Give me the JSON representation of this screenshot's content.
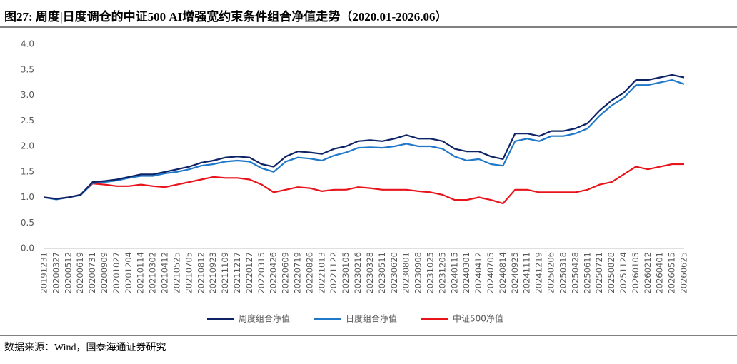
{
  "chart_data": {
    "type": "line",
    "title": "图27:  周度|日度调仓的中证500 AI增强宽约束条件组合净值走势（2020.01-2026.06）",
    "source": "数据来源：Wind，国泰海通证券研究",
    "categories": [
      "20191231",
      "20200327",
      "20200512",
      "20200619",
      "20200731",
      "20200909",
      "20201027",
      "20201204",
      "20210114",
      "20210302",
      "20210412",
      "20210525",
      "20210705",
      "20210812",
      "20210923",
      "20211109",
      "20211217",
      "20220127",
      "20220315",
      "20220426",
      "20220609",
      "20220719",
      "20220826",
      "20221013",
      "20221122",
      "20230105",
      "20230216",
      "20230328",
      "20230511",
      "20230620",
      "20230801",
      "20230908",
      "20231025",
      "20231205",
      "20240115",
      "20240301",
      "20240412",
      "20240705",
      "20240814",
      "20240925",
      "20241111",
      "20241219",
      "20250206",
      "20250318",
      "20250428",
      "20250611",
      "20250721",
      "20250828",
      "20251124",
      "20260105",
      "20260212",
      "20260401",
      "20260515",
      "20260625"
    ],
    "series": [
      {
        "name": "周度组合净值",
        "color": "#0d2366",
        "values": [
          1.0,
          0.97,
          1.0,
          1.05,
          1.3,
          1.32,
          1.35,
          1.4,
          1.45,
          1.45,
          1.5,
          1.55,
          1.6,
          1.68,
          1.72,
          1.78,
          1.8,
          1.78,
          1.65,
          1.6,
          1.8,
          1.9,
          1.88,
          1.85,
          1.95,
          2.0,
          2.1,
          2.12,
          2.1,
          2.15,
          2.22,
          2.15,
          2.15,
          2.1,
          1.95,
          1.9,
          1.9,
          1.8,
          1.75,
          2.25,
          2.25,
          2.2,
          2.3,
          2.3,
          2.35,
          2.45,
          2.7,
          2.9,
          3.05,
          3.3,
          3.3,
          3.35,
          3.4,
          3.35
        ]
      },
      {
        "name": "日度组合净值",
        "color": "#1f78c8",
        "values": [
          1.0,
          0.96,
          1.0,
          1.04,
          1.28,
          1.3,
          1.33,
          1.38,
          1.42,
          1.42,
          1.47,
          1.5,
          1.55,
          1.62,
          1.65,
          1.7,
          1.72,
          1.7,
          1.57,
          1.5,
          1.7,
          1.78,
          1.76,
          1.72,
          1.82,
          1.88,
          1.97,
          1.98,
          1.97,
          2.0,
          2.05,
          2.0,
          2.0,
          1.95,
          1.8,
          1.72,
          1.75,
          1.65,
          1.62,
          2.1,
          2.15,
          2.1,
          2.2,
          2.2,
          2.25,
          2.35,
          2.6,
          2.8,
          2.95,
          3.2,
          3.2,
          3.25,
          3.3,
          3.22
        ]
      },
      {
        "name": "中证500净值",
        "color": "#e8141b",
        "values": [
          1.0,
          0.97,
          1.0,
          1.05,
          1.27,
          1.25,
          1.22,
          1.22,
          1.25,
          1.22,
          1.2,
          1.25,
          1.3,
          1.35,
          1.4,
          1.38,
          1.38,
          1.35,
          1.25,
          1.1,
          1.15,
          1.2,
          1.18,
          1.12,
          1.15,
          1.15,
          1.2,
          1.18,
          1.15,
          1.15,
          1.15,
          1.12,
          1.1,
          1.05,
          0.95,
          0.95,
          1.0,
          0.95,
          0.88,
          1.15,
          1.15,
          1.1,
          1.1,
          1.1,
          1.1,
          1.15,
          1.25,
          1.3,
          1.45,
          1.6,
          1.55,
          1.6,
          1.65,
          1.65
        ]
      }
    ],
    "ylim": [
      0,
      4
    ],
    "yticks": [
      {
        "value": 0,
        "label": "0.0"
      },
      0.5,
      {
        "value": 1,
        "label": "1.0"
      },
      1.5,
      {
        "value": 2,
        "label": "2.0"
      },
      2.5,
      {
        "value": 3,
        "label": "3.0"
      },
      3.5,
      {
        "value": 4,
        "label": "4.0"
      }
    ],
    "grid": false,
    "legend": "bottom"
  }
}
